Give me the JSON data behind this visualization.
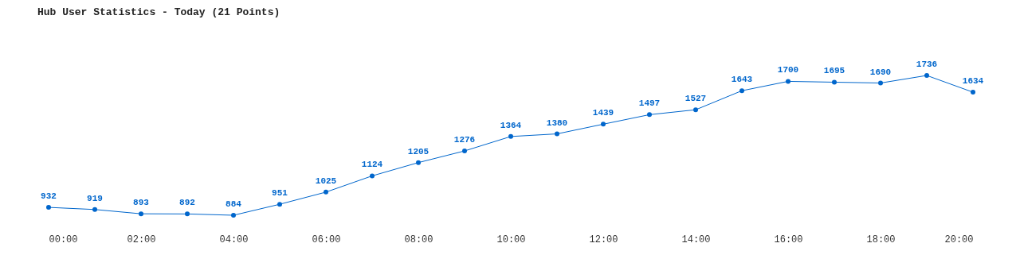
{
  "chart_data": {
    "type": "line",
    "title": "Hub User Statistics - Today (21 Points)",
    "x": [
      0,
      1,
      2,
      3,
      4,
      5,
      6,
      7,
      8,
      9,
      10,
      11,
      12,
      13,
      14,
      15,
      16,
      17,
      18,
      19,
      20
    ],
    "series": [
      {
        "color": "#0066cc",
        "values": [
          932,
          919,
          893,
          892,
          884,
          951,
          1025,
          1124,
          1205,
          1276,
          1364,
          1380,
          1439,
          1497,
          1527,
          1643,
          1700,
          1695,
          1690,
          1736,
          1634
        ]
      }
    ],
    "xlim": [
      0,
      20
    ],
    "xticks": [
      {
        "value": 0,
        "label": "00:00"
      },
      {
        "value": 2,
        "label": "02:00"
      },
      {
        "value": 4,
        "label": "04:00"
      },
      {
        "value": 6,
        "label": "06:00"
      },
      {
        "value": 8,
        "label": "08:00"
      },
      {
        "value": 10,
        "label": "10:00"
      },
      {
        "value": 12,
        "label": "12:00"
      },
      {
        "value": 14,
        "label": "14:00"
      },
      {
        "value": 16,
        "label": "16:00"
      },
      {
        "value": 18,
        "label": "18:00"
      },
      {
        "value": 20,
        "label": "20:00"
      }
    ],
    "data_labels": true,
    "marker": "circle",
    "tick_labels": "x"
  }
}
